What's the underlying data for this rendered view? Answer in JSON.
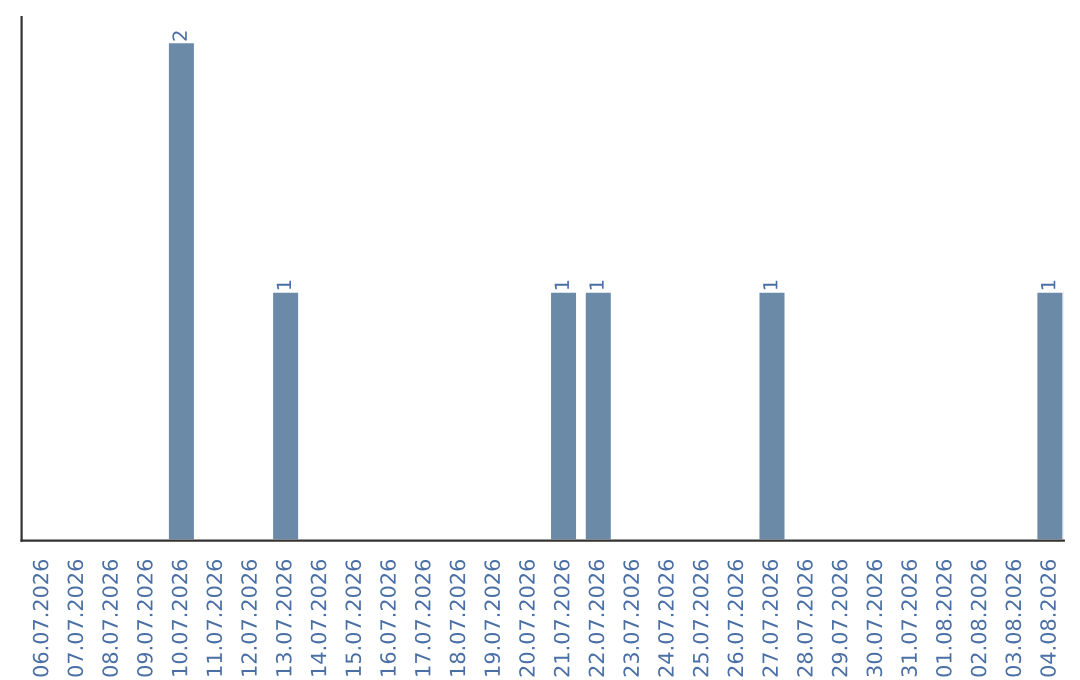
{
  "chart_data": {
    "type": "bar",
    "categories": [
      "06.07.2026",
      "07.07.2026",
      "08.07.2026",
      "09.07.2026",
      "10.07.2026",
      "11.07.2026",
      "12.07.2026",
      "13.07.2026",
      "14.07.2026",
      "15.07.2026",
      "16.07.2026",
      "17.07.2026",
      "18.07.2026",
      "19.07.2026",
      "20.07.2026",
      "21.07.2026",
      "22.07.2026",
      "23.07.2026",
      "24.07.2026",
      "25.07.2026",
      "26.07.2026",
      "27.07.2026",
      "28.07.2026",
      "29.07.2026",
      "30.07.2026",
      "31.07.2026",
      "01.08.2026",
      "02.08.2026",
      "03.08.2026",
      "04.08.2026"
    ],
    "values": [
      0,
      0,
      0,
      0,
      2,
      0,
      0,
      1,
      0,
      0,
      0,
      0,
      0,
      0,
      0,
      1,
      1,
      0,
      0,
      0,
      0,
      1,
      0,
      0,
      0,
      0,
      0,
      0,
      0,
      1
    ],
    "value_labels": [
      null,
      null,
      null,
      null,
      "2",
      null,
      null,
      "1",
      null,
      null,
      null,
      null,
      null,
      null,
      null,
      "1",
      "1",
      null,
      null,
      null,
      null,
      "1",
      null,
      null,
      null,
      null,
      null,
      null,
      null,
      "1"
    ],
    "color": "#6b8aa8",
    "ylim": [
      0,
      2.1
    ],
    "tick_labels": "x",
    "grid": false,
    "legend": false
  }
}
